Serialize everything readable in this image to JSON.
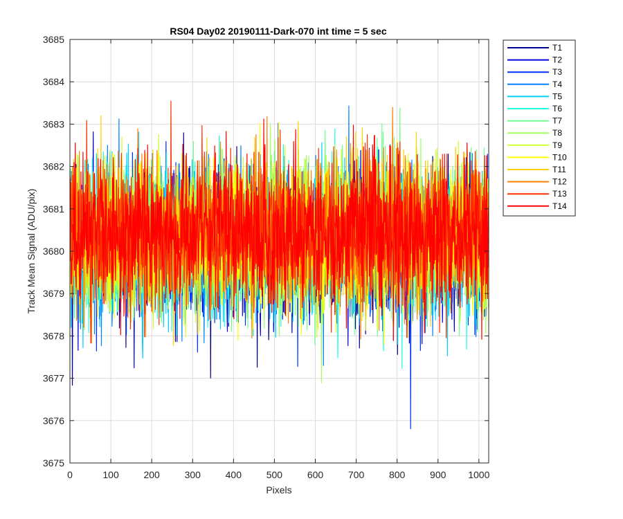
{
  "chart_data": {
    "type": "line",
    "title": "RS04 Day02 20190111-Dark-070 int time = 5 sec",
    "xlabel": "Pixels",
    "ylabel": "Track Mean Signal (ADU/pix)",
    "xlim": [
      0,
      1024
    ],
    "ylim": [
      3675,
      3685
    ],
    "xticks": [
      0,
      100,
      200,
      300,
      400,
      500,
      600,
      700,
      800,
      900,
      1000
    ],
    "yticks": [
      3675,
      3676,
      3677,
      3678,
      3679,
      3680,
      3681,
      3682,
      3683,
      3684,
      3685
    ],
    "grid": true,
    "legend_position": "outside-top-right",
    "n_pixels": 1024,
    "series_mean": 3680.3,
    "series_std": 0.85,
    "series": [
      {
        "name": "T1",
        "color": "#00008f"
      },
      {
        "name": "T2",
        "color": "#0000df"
      },
      {
        "name": "T3",
        "color": "#0030ff"
      },
      {
        "name": "T4",
        "color": "#0080ff"
      },
      {
        "name": "T5",
        "color": "#00cfff"
      },
      {
        "name": "T6",
        "color": "#20ffdf"
      },
      {
        "name": "T7",
        "color": "#70ff8f"
      },
      {
        "name": "T8",
        "color": "#9fff60"
      },
      {
        "name": "T9",
        "color": "#cfff30"
      },
      {
        "name": "T10",
        "color": "#ffff00"
      },
      {
        "name": "T11",
        "color": "#ffd000"
      },
      {
        "name": "T12",
        "color": "#ff8000"
      },
      {
        "name": "T13",
        "color": "#ff3000"
      },
      {
        "name": "T14",
        "color": "#ff0000"
      }
    ]
  }
}
